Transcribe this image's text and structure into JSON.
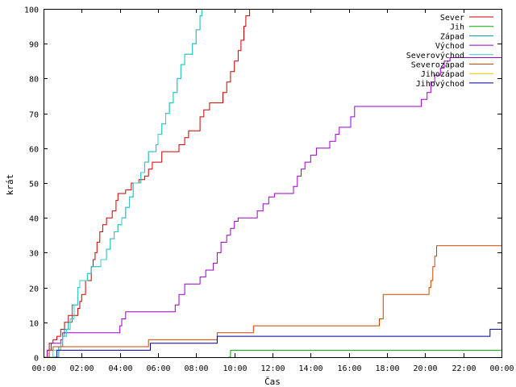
{
  "chart_data": {
    "type": "line",
    "title": "",
    "xlabel": "Čas",
    "ylabel": "krát",
    "xlim": [
      0,
      24
    ],
    "ylim": [
      0,
      100
    ],
    "x_ticks": [
      {
        "value": 0,
        "label": "00:00"
      },
      {
        "value": 2,
        "label": "02:00"
      },
      {
        "value": 4,
        "label": "04:00"
      },
      {
        "value": 6,
        "label": "06:00"
      },
      {
        "value": 8,
        "label": "08:00"
      },
      {
        "value": 10,
        "label": "10:00"
      },
      {
        "value": 12,
        "label": "12:00"
      },
      {
        "value": 14,
        "label": "14:00"
      },
      {
        "value": 16,
        "label": "16:00"
      },
      {
        "value": 18,
        "label": "18:00"
      },
      {
        "value": 20,
        "label": "20:00"
      },
      {
        "value": 22,
        "label": "22:00"
      },
      {
        "value": 24,
        "label": "00:00"
      }
    ],
    "y_ticks": [
      0,
      10,
      20,
      30,
      40,
      50,
      60,
      70,
      80,
      90,
      100
    ],
    "grid": false,
    "legend_position": "top-right",
    "series": [
      {
        "name": "Sever",
        "color": "#cc0000",
        "step": true,
        "points": [
          [
            0.1,
            0
          ],
          [
            0.2,
            2
          ],
          [
            0.3,
            4
          ],
          [
            0.5,
            5
          ],
          [
            0.7,
            6
          ],
          [
            0.9,
            8
          ],
          [
            1.1,
            10
          ],
          [
            1.3,
            12
          ],
          [
            1.8,
            14
          ],
          [
            1.9,
            16
          ],
          [
            2.0,
            18
          ],
          [
            2.2,
            22
          ],
          [
            2.5,
            26
          ],
          [
            2.6,
            28
          ],
          [
            2.7,
            30
          ],
          [
            2.8,
            33
          ],
          [
            2.95,
            36
          ],
          [
            3.1,
            38
          ],
          [
            3.3,
            40
          ],
          [
            3.6,
            42
          ],
          [
            3.8,
            45
          ],
          [
            3.9,
            47
          ],
          [
            4.3,
            48
          ],
          [
            4.6,
            50
          ],
          [
            5.0,
            51
          ],
          [
            5.3,
            52
          ],
          [
            5.5,
            54
          ],
          [
            5.7,
            56
          ],
          [
            6.2,
            59
          ],
          [
            7.1,
            61
          ],
          [
            7.4,
            63
          ],
          [
            7.6,
            65
          ],
          [
            8.2,
            69
          ],
          [
            8.4,
            71
          ],
          [
            8.7,
            73
          ],
          [
            9.4,
            76
          ],
          [
            9.6,
            79
          ],
          [
            9.8,
            82
          ],
          [
            10.0,
            85
          ],
          [
            10.2,
            88
          ],
          [
            10.35,
            91
          ],
          [
            10.5,
            95
          ],
          [
            10.6,
            98
          ],
          [
            10.8,
            100
          ]
        ]
      },
      {
        "name": "Jih",
        "color": "#00aa00",
        "step": true,
        "points": [
          [
            9.7,
            0
          ],
          [
            9.8,
            2
          ],
          [
            24,
            2
          ]
        ]
      },
      {
        "name": "Západ",
        "color": "#009999",
        "step": true,
        "points": [
          [
            0.5,
            0
          ],
          [
            0.8,
            3
          ],
          [
            1.0,
            6
          ],
          [
            1.1,
            8
          ],
          [
            1.3,
            10
          ],
          [
            1.5,
            15
          ],
          [
            1.8,
            20
          ],
          [
            1.9,
            22
          ],
          [
            2.3,
            24
          ],
          [
            2.5,
            26
          ],
          [
            3.0,
            28
          ],
          [
            3.3,
            31
          ],
          [
            3.5,
            34
          ],
          [
            3.7,
            36
          ],
          [
            3.9,
            38
          ],
          [
            4.1,
            40
          ],
          [
            4.3,
            43
          ],
          [
            4.5,
            46
          ],
          [
            4.7,
            50
          ],
          [
            5.1,
            53
          ],
          [
            5.3,
            56
          ],
          [
            5.5,
            59
          ],
          [
            5.9,
            61
          ],
          [
            6.0,
            64
          ],
          [
            6.2,
            67
          ],
          [
            6.4,
            70
          ],
          [
            6.6,
            73
          ],
          [
            6.8,
            76
          ],
          [
            7.0,
            80
          ],
          [
            7.2,
            84
          ],
          [
            7.4,
            87
          ],
          [
            7.8,
            90
          ],
          [
            8.0,
            94
          ],
          [
            8.2,
            98
          ],
          [
            8.3,
            100
          ]
        ]
      },
      {
        "name": "Východ",
        "color": "#9900cc",
        "step": true,
        "points": [
          [
            0,
            0
          ],
          [
            0.2,
            2
          ],
          [
            0.4,
            4
          ],
          [
            0.9,
            5
          ],
          [
            1.0,
            7
          ],
          [
            4.0,
            9
          ],
          [
            4.1,
            11
          ],
          [
            4.3,
            13
          ],
          [
            6.9,
            15
          ],
          [
            7.1,
            18
          ],
          [
            7.4,
            21
          ],
          [
            8.2,
            23
          ],
          [
            8.5,
            25
          ],
          [
            8.9,
            27
          ],
          [
            9.1,
            30
          ],
          [
            9.3,
            33
          ],
          [
            9.6,
            35
          ],
          [
            9.8,
            37
          ],
          [
            10.0,
            39
          ],
          [
            10.2,
            40
          ],
          [
            11.2,
            42
          ],
          [
            11.5,
            44
          ],
          [
            11.8,
            46
          ],
          [
            12.1,
            47
          ],
          [
            13.1,
            49
          ],
          [
            13.3,
            52
          ],
          [
            13.5,
            54
          ],
          [
            13.7,
            56
          ],
          [
            14.0,
            58
          ],
          [
            14.3,
            60
          ],
          [
            15.0,
            62
          ],
          [
            15.3,
            64
          ],
          [
            15.5,
            66
          ],
          [
            16.1,
            69
          ],
          [
            16.3,
            72
          ],
          [
            19.8,
            74
          ],
          [
            20.1,
            76
          ],
          [
            20.3,
            79
          ],
          [
            20.5,
            81
          ],
          [
            20.8,
            83
          ],
          [
            21.0,
            85
          ],
          [
            21.3,
            86
          ],
          [
            24,
            86
          ]
        ]
      },
      {
        "name": "Severovýchod",
        "color": "#33cccc",
        "step": true,
        "points": [
          [
            0.3,
            0
          ],
          [
            0.5,
            2
          ],
          [
            0.9,
            4
          ],
          [
            1.0,
            6
          ],
          [
            1.2,
            8
          ],
          [
            1.4,
            11
          ],
          [
            1.6,
            15
          ],
          [
            1.8,
            20
          ],
          [
            1.9,
            22
          ],
          [
            2.3,
            24
          ],
          [
            2.5,
            26
          ],
          [
            3.0,
            28
          ],
          [
            3.3,
            31
          ],
          [
            3.5,
            34
          ],
          [
            3.7,
            36
          ],
          [
            3.9,
            38
          ],
          [
            4.1,
            40
          ],
          [
            4.3,
            43
          ],
          [
            4.5,
            46
          ],
          [
            4.7,
            50
          ],
          [
            5.1,
            53
          ],
          [
            5.3,
            56
          ],
          [
            5.5,
            59
          ],
          [
            5.9,
            61
          ],
          [
            6.0,
            64
          ],
          [
            6.2,
            67
          ],
          [
            6.4,
            70
          ],
          [
            6.6,
            73
          ],
          [
            6.8,
            76
          ],
          [
            7.0,
            80
          ],
          [
            7.2,
            84
          ],
          [
            7.4,
            87
          ],
          [
            7.8,
            90
          ],
          [
            8.0,
            94
          ],
          [
            8.2,
            98
          ],
          [
            8.3,
            100
          ]
        ]
      },
      {
        "name": "Severozápad",
        "color": "#cc4400",
        "step": true,
        "points": [
          [
            0,
            0
          ],
          [
            0.3,
            2
          ],
          [
            0.5,
            3
          ],
          [
            5.5,
            5
          ],
          [
            9.1,
            7
          ],
          [
            11.0,
            9
          ],
          [
            17.6,
            11
          ],
          [
            17.8,
            18
          ],
          [
            20.2,
            20
          ],
          [
            20.3,
            22
          ],
          [
            20.4,
            26
          ],
          [
            20.5,
            29
          ],
          [
            20.6,
            32
          ],
          [
            24,
            32
          ]
        ]
      },
      {
        "name": "Jihozápad",
        "color": "#e6c700",
        "step": true,
        "points": []
      },
      {
        "name": "Jihovýchod",
        "color": "#000099",
        "step": true,
        "points": [
          [
            0.6,
            0
          ],
          [
            0.7,
            2
          ],
          [
            5.6,
            4
          ],
          [
            9.1,
            6
          ],
          [
            23.4,
            8
          ],
          [
            24,
            8
          ]
        ]
      }
    ]
  }
}
